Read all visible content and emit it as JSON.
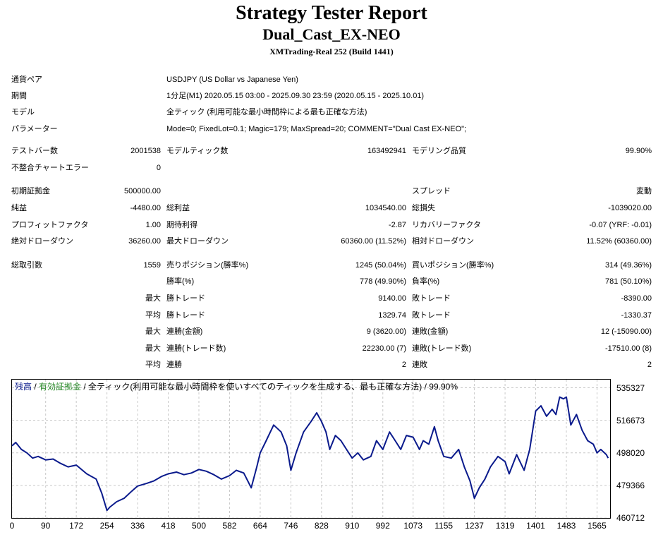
{
  "header": {
    "title": "Strategy Tester Report",
    "ea_name": "Dual_Cast_EX-NEO",
    "server": "XMTrading-Real 252 (Build 1441)"
  },
  "settings": [
    {
      "label": "通貨ペア",
      "value": "USDJPY (US Dollar vs Japanese Yen)"
    },
    {
      "label": "期間",
      "value": "1分足(M1) 2020.05.15 03:00 - 2025.09.30 23:59 (2020.05.15 - 2025.10.01)"
    },
    {
      "label": "モデル",
      "value": "全ティック (利用可能な最小時間枠による最も正確な方法)"
    },
    {
      "label": "パラメーター",
      "value": "Mode=0; FixedLot=0.1; Magic=179; MaxSpread=20; COMMENT=\"Dual Cast EX-NEO\";"
    }
  ],
  "stats": {
    "bars_label": "テストバー数",
    "bars_value": "2001538",
    "ticks_label": "モデルティック数",
    "ticks_value": "163492941",
    "quality_label": "モデリング品質",
    "quality_value": "99.90%",
    "mismatch_label": "不整合チャートエラー",
    "mismatch_value": "0",
    "deposit_label": "初期証拠金",
    "deposit_value": "500000.00",
    "spread_label": "スプレッド",
    "spread_value": "変動",
    "net_label": "純益",
    "net_value": "-4480.00",
    "gross_profit_label": "総利益",
    "gross_profit_value": "1034540.00",
    "gross_loss_label": "総損失",
    "gross_loss_value": "-1039020.00",
    "pf_label": "プロフィットファクタ",
    "pf_value": "1.00",
    "expected_label": "期待利得",
    "expected_value": "-2.87",
    "recovery_label": "リカバリーファクタ",
    "recovery_value": "-0.07 (YRF: -0.01)",
    "abs_dd_label": "絶対ドローダウン",
    "abs_dd_value": "36260.00",
    "max_dd_label": "最大ドローダウン",
    "max_dd_value": "60360.00 (11.52%)",
    "rel_dd_label": "相対ドローダウン",
    "rel_dd_value": "11.52% (60360.00)",
    "trades_label": "総取引数",
    "trades_value": "1559",
    "short_label": "売りポジション(勝率%)",
    "short_value": "1245 (50.04%)",
    "long_label": "買いポジション(勝率%)",
    "long_value": "314 (49.36%)",
    "winrate_label": "勝率(%)",
    "winrate_value": "778 (49.90%)",
    "lossrate_label": "負率(%)",
    "lossrate_value": "781 (50.10%)",
    "max_prefix": "最大",
    "avg_prefix": "平均",
    "largest_win_label": "勝トレード",
    "largest_win_value": "9140.00",
    "largest_loss_label": "敗トレード",
    "largest_loss_value": "-8390.00",
    "avg_win_label": "勝トレード",
    "avg_win_value": "1329.74",
    "avg_loss_label": "敗トレード",
    "avg_loss_value": "-1330.37",
    "max_cons_win_amt_label": "連勝(金額)",
    "max_cons_win_amt_value": "9 (3620.00)",
    "max_cons_loss_amt_label": "連敗(金額)",
    "max_cons_loss_amt_value": "12 (-15090.00)",
    "max_cons_win_cnt_label": "連勝(トレード数)",
    "max_cons_win_cnt_value": "22230.00 (7)",
    "max_cons_loss_cnt_label": "連敗(トレード数)",
    "max_cons_loss_cnt_value": "-17510.00 (8)",
    "avg_cons_win_label": "連勝",
    "avg_cons_win_value": "2",
    "avg_cons_loss_label": "連敗",
    "avg_cons_loss_value": "2"
  },
  "chart_caption": {
    "balance": "残高",
    "sep": " / ",
    "equity": "有効証拠金",
    "rest": " / 全ティック(利用可能な最小時間枠を使いすべてのティックを生成する、最も正確な方法) / 99.90%"
  },
  "colors": {
    "balance_line": "#0a1a8c",
    "equity_text": "#2a8a2a",
    "balance_text": "#0a1a8c",
    "grid": "#c8c8c8"
  },
  "chart_data": {
    "type": "line",
    "ylim": [
      460712,
      540000
    ],
    "xlim": [
      0,
      1600
    ],
    "y_ticks": [
      535327,
      516673,
      498020,
      479366,
      460712
    ],
    "x_ticks": [
      0,
      90,
      172,
      254,
      336,
      418,
      500,
      582,
      664,
      746,
      828,
      910,
      992,
      1073,
      1155,
      1237,
      1319,
      1401,
      1483,
      1565
    ],
    "series": [
      {
        "name": "残高",
        "x": [
          0,
          10,
          25,
          40,
          55,
          70,
          90,
          110,
          130,
          150,
          172,
          200,
          225,
          240,
          254,
          262,
          280,
          300,
          320,
          336,
          360,
          380,
          400,
          418,
          440,
          460,
          480,
          500,
          520,
          540,
          560,
          582,
          600,
          620,
          640,
          655,
          664,
          680,
          700,
          710,
          720,
          735,
          746,
          760,
          780,
          800,
          815,
          828,
          840,
          850,
          865,
          880,
          895,
          910,
          925,
          940,
          960,
          975,
          992,
          1010,
          1025,
          1040,
          1055,
          1073,
          1090,
          1100,
          1115,
          1130,
          1140,
          1155,
          1175,
          1195,
          1210,
          1225,
          1237,
          1250,
          1265,
          1280,
          1300,
          1319,
          1330,
          1350,
          1370,
          1385,
          1401,
          1415,
          1430,
          1445,
          1455,
          1465,
          1475,
          1483,
          1495,
          1510,
          1525,
          1540,
          1555,
          1565,
          1575,
          1590,
          1595
        ],
        "y": [
          502000,
          504000,
          500000,
          498000,
          495000,
          496000,
          494000,
          494500,
          492000,
          490000,
          491000,
          486000,
          483000,
          475000,
          465000,
          467000,
          470000,
          472000,
          476000,
          479000,
          480500,
          482000,
          484500,
          486000,
          487000,
          485500,
          486500,
          488500,
          487500,
          485500,
          483000,
          485000,
          488000,
          486500,
          478000,
          490000,
          498000,
          505000,
          514000,
          512000,
          510000,
          502000,
          488000,
          498000,
          510000,
          516000,
          521000,
          516000,
          510000,
          500000,
          508000,
          505000,
          500000,
          495000,
          498000,
          494000,
          496000,
          505000,
          500000,
          510000,
          505000,
          500000,
          508000,
          507000,
          500000,
          505000,
          503000,
          513000,
          505000,
          496000,
          495000,
          500000,
          490000,
          482000,
          472000,
          478000,
          483000,
          490000,
          496000,
          493000,
          486000,
          497000,
          488000,
          500000,
          522000,
          525000,
          519000,
          523000,
          520000,
          530000,
          529000,
          530000,
          514000,
          520000,
          511000,
          505000,
          503000,
          498000,
          500000,
          497000,
          495000
        ]
      }
    ]
  }
}
